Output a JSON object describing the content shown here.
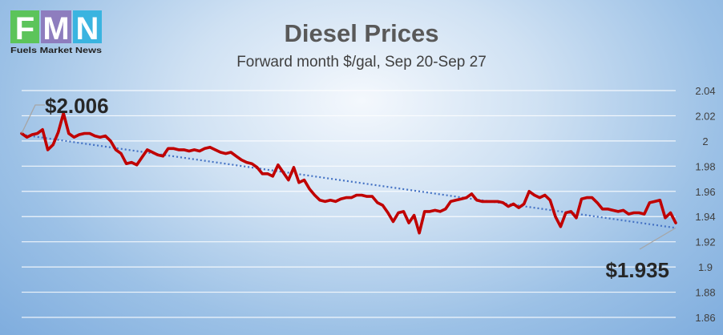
{
  "logo": {
    "letters": [
      "F",
      "M",
      "N"
    ],
    "caption": "Fuels Market News",
    "colors": [
      "#5cc45a",
      "#8e7dbe",
      "#3ab4e0"
    ]
  },
  "chart_data": {
    "type": "line",
    "title": "Diesel Prices",
    "subtitle": "Forward month $/gal, Sep 20-Sep 27",
    "xlabel": "",
    "ylabel": "",
    "ylim": [
      1.86,
      2.04
    ],
    "yticks": [
      "1.86",
      "1.88",
      "1.9",
      "1.92",
      "1.94",
      "1.96",
      "1.98",
      "2",
      "2.02",
      "2.04"
    ],
    "grid": true,
    "series": [
      {
        "color": "#c00000",
        "values": [
          2.006,
          2.003,
          2.005,
          2.006,
          2.009,
          1.993,
          1.997,
          2.007,
          2.022,
          2.006,
          2.003,
          2.005,
          2.006,
          2.006,
          2.004,
          2.003,
          2.004,
          2.0,
          1.993,
          1.99,
          1.982,
          1.983,
          1.981,
          1.987,
          1.993,
          1.991,
          1.989,
          1.988,
          1.994,
          1.994,
          1.993,
          1.993,
          1.992,
          1.993,
          1.992,
          1.994,
          1.995,
          1.993,
          1.991,
          1.99,
          1.991,
          1.988,
          1.985,
          1.983,
          1.982,
          1.979,
          1.974,
          1.974,
          1.972,
          1.981,
          1.975,
          1.969,
          1.979,
          1.967,
          1.969,
          1.962,
          1.957,
          1.953,
          1.952,
          1.953,
          1.952,
          1.954,
          1.955,
          1.955,
          1.957,
          1.957,
          1.956,
          1.956,
          1.951,
          1.949,
          1.943,
          1.936,
          1.943,
          1.944,
          1.935,
          1.941,
          1.927,
          1.944,
          1.944,
          1.945,
          1.944,
          1.946,
          1.952,
          1.953,
          1.954,
          1.955,
          1.958,
          1.953,
          1.952,
          1.952,
          1.952,
          1.952,
          1.951,
          1.948,
          1.95,
          1.947,
          1.95,
          1.96,
          1.957,
          1.955,
          1.957,
          1.953,
          1.94,
          1.932,
          1.943,
          1.944,
          1.939,
          1.954,
          1.955,
          1.955,
          1.951,
          1.946,
          1.946,
          1.945,
          1.944,
          1.945,
          1.942,
          1.943,
          1.943,
          1.942,
          1.951,
          1.952,
          1.953,
          1.939,
          1.943,
          1.935
        ]
      },
      {
        "name": "trend",
        "color": "#4472c4",
        "style": "dotted",
        "values": [
          2.005,
          1.931
        ]
      }
    ],
    "annotations": [
      {
        "text": "$2.006",
        "value": 2.006,
        "anchor": "start"
      },
      {
        "text": "$1.935",
        "value": 1.935,
        "anchor": "end"
      }
    ]
  }
}
